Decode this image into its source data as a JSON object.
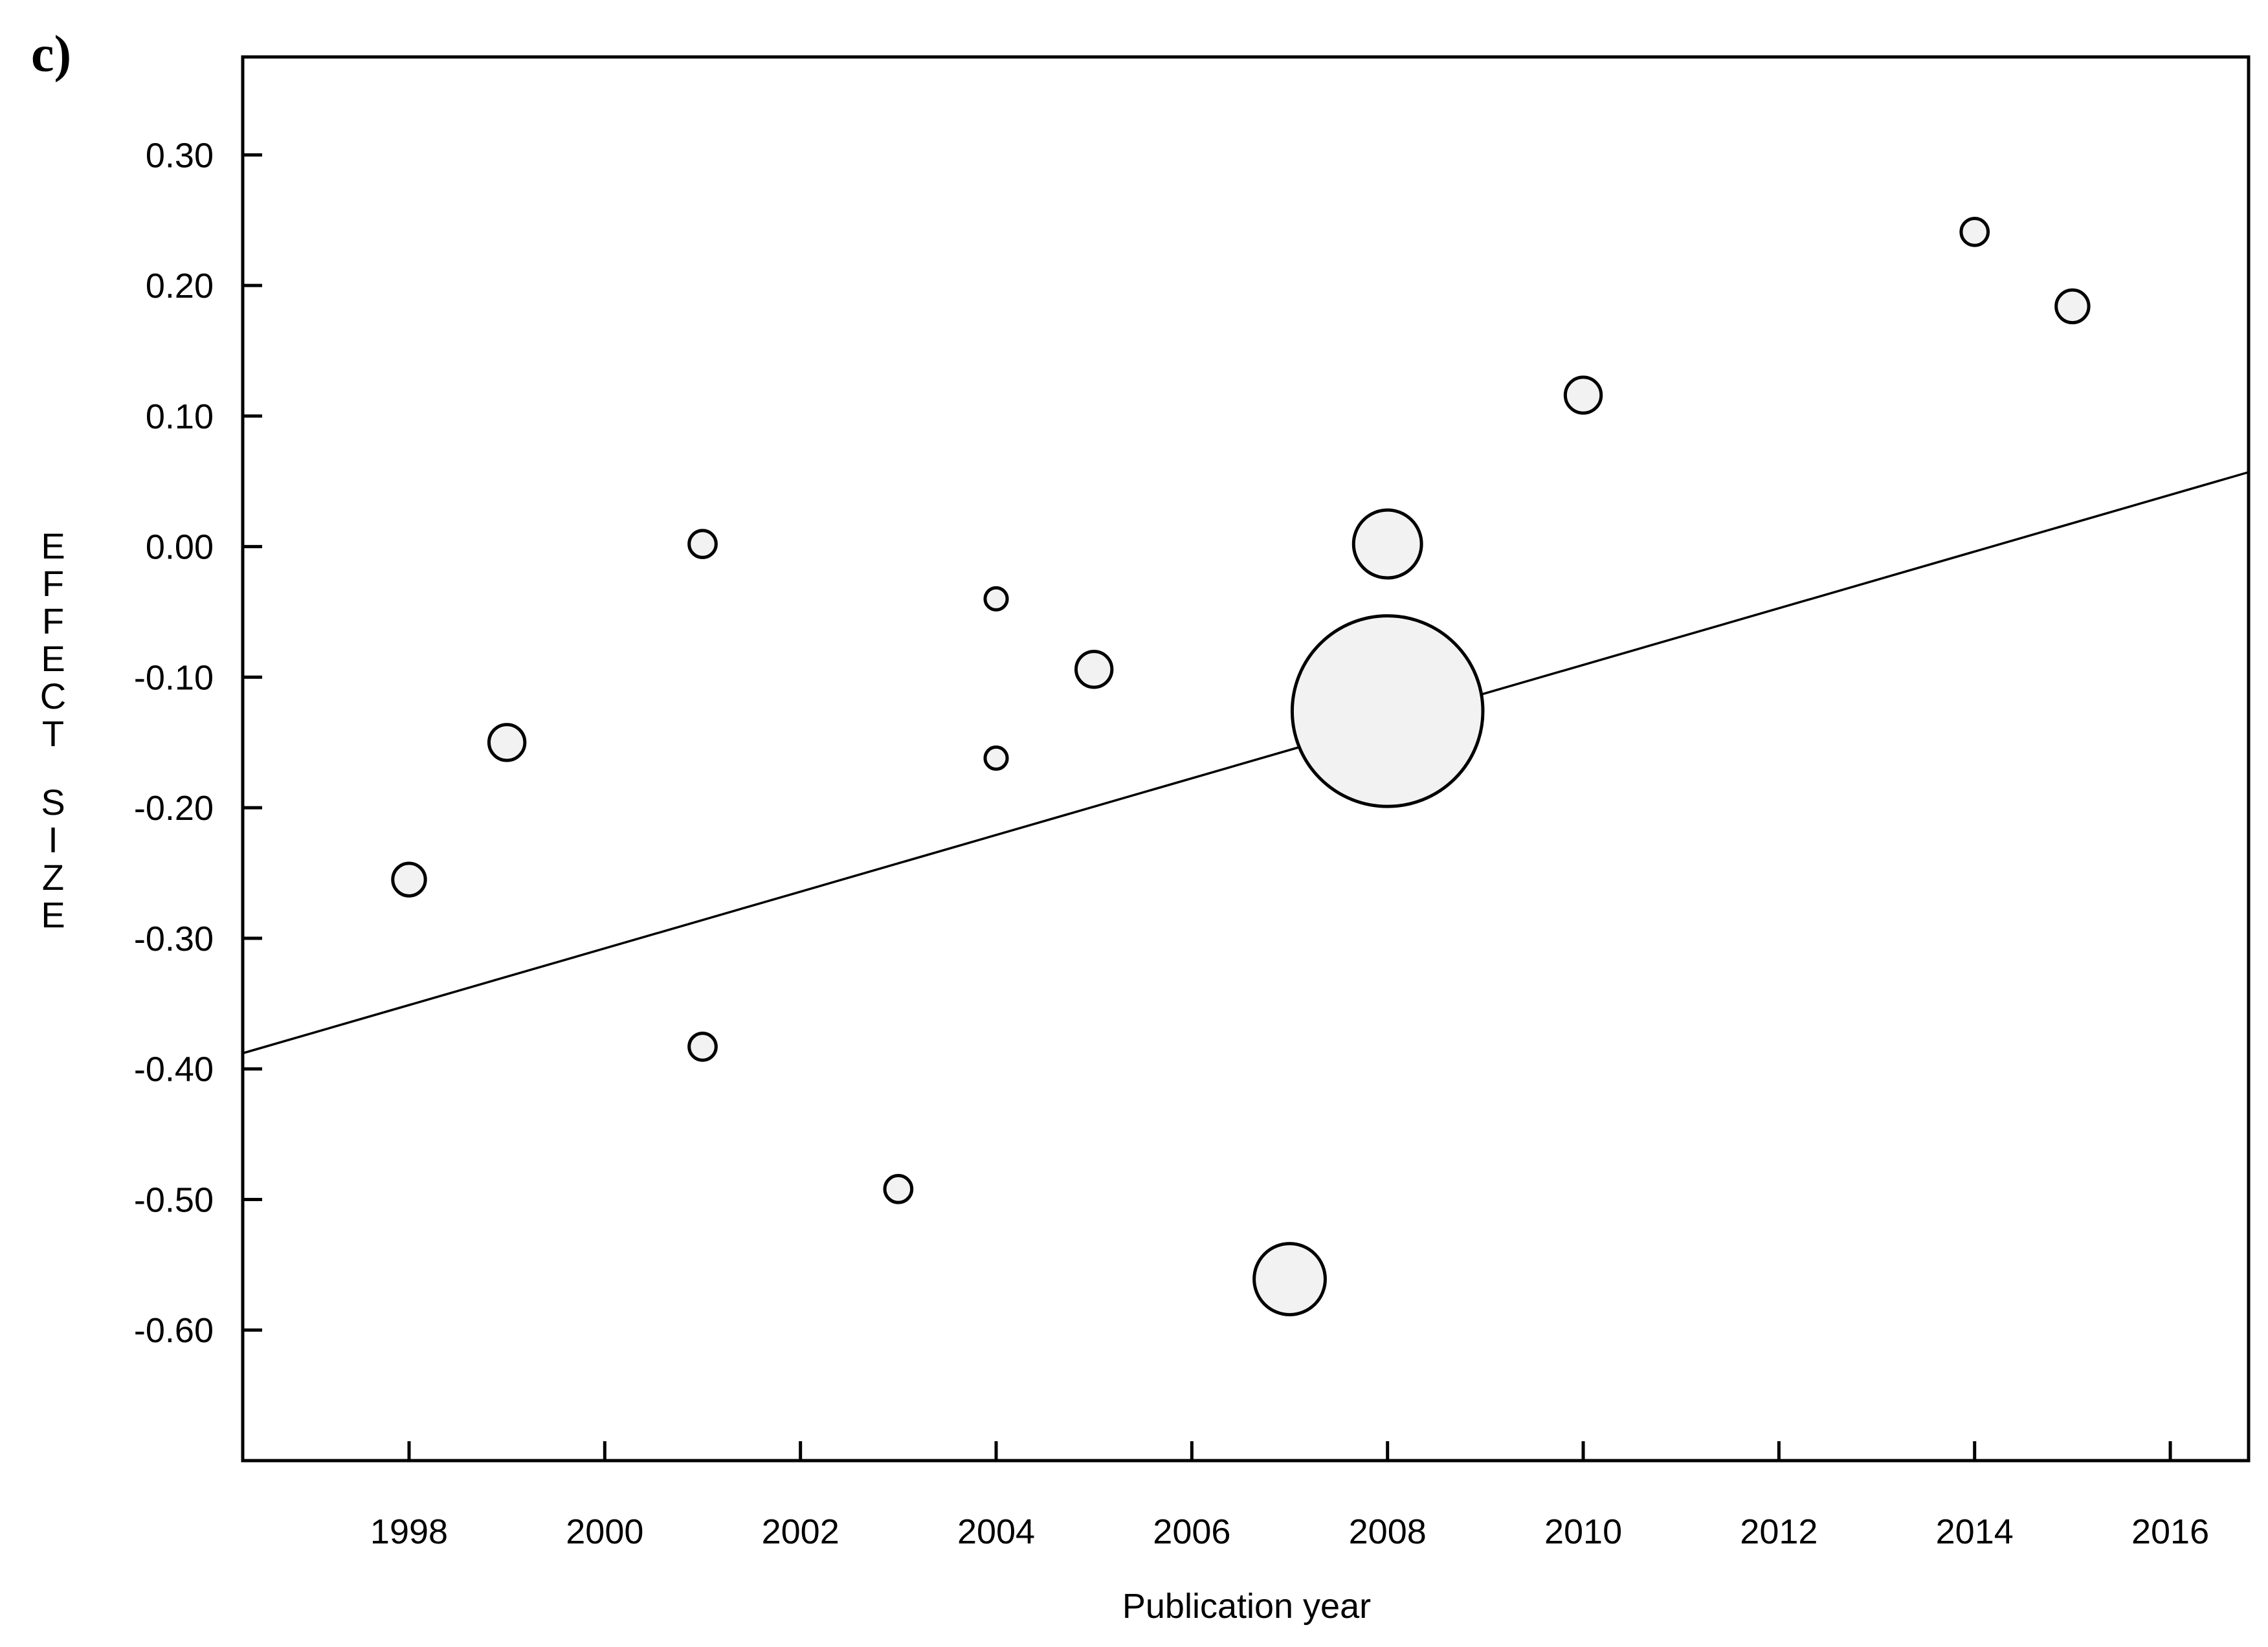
{
  "panel_label": "c)",
  "chart_data": {
    "type": "scatter",
    "xlabel": "Publication year",
    "ylabel": "EFFECT SIZE",
    "xlim": [
      1996.3,
      2016.8
    ],
    "ylim": [
      -0.7,
      0.375
    ],
    "x_ticks": [
      1998,
      2000,
      2002,
      2004,
      2006,
      2008,
      2010,
      2012,
      2014,
      2016
    ],
    "x_tick_labels": [
      "1998",
      "2000",
      "2002",
      "2004",
      "2006",
      "2008",
      "2010",
      "2012",
      "2014",
      "2016"
    ],
    "y_ticks": [
      0.3,
      0.2,
      0.1,
      0.0,
      -0.1,
      -0.2,
      -0.3,
      -0.4,
      -0.5,
      -0.6
    ],
    "y_tick_labels": [
      "0.30",
      "0.20",
      "0.10",
      "0.00",
      "-0.10",
      "-0.20",
      "-0.30",
      "-0.40",
      "-0.50",
      "-0.60"
    ],
    "points": [
      {
        "x": 1998,
        "y": -0.255,
        "weight": 1.2
      },
      {
        "x": 1999,
        "y": -0.15,
        "weight": 1.45
      },
      {
        "x": 2001,
        "y": 0.002,
        "weight": 0.82
      },
      {
        "x": 2001,
        "y": -0.383,
        "weight": 0.82
      },
      {
        "x": 2003,
        "y": -0.492,
        "weight": 0.82
      },
      {
        "x": 2004,
        "y": -0.04,
        "weight": 0.55
      },
      {
        "x": 2004,
        "y": -0.162,
        "weight": 0.55
      },
      {
        "x": 2005,
        "y": -0.094,
        "weight": 1.45
      },
      {
        "x": 2007,
        "y": -0.561,
        "weight": 5.7
      },
      {
        "x": 2008,
        "y": 0.002,
        "weight": 5.2
      },
      {
        "x": 2008,
        "y": -0.126,
        "weight": 41.0
      },
      {
        "x": 2010,
        "y": 0.116,
        "weight": 1.45
      },
      {
        "x": 2014,
        "y": 0.241,
        "weight": 0.82
      },
      {
        "x": 2015,
        "y": 0.184,
        "weight": 1.2
      }
    ],
    "regression_line": {
      "x": [
        1996.3,
        2016.8
      ],
      "y": [
        -0.388,
        0.057
      ]
    },
    "grid": false,
    "legend": "none",
    "colors": {
      "marker_fill": "#f2f2f2",
      "stroke": "#000000"
    }
  }
}
